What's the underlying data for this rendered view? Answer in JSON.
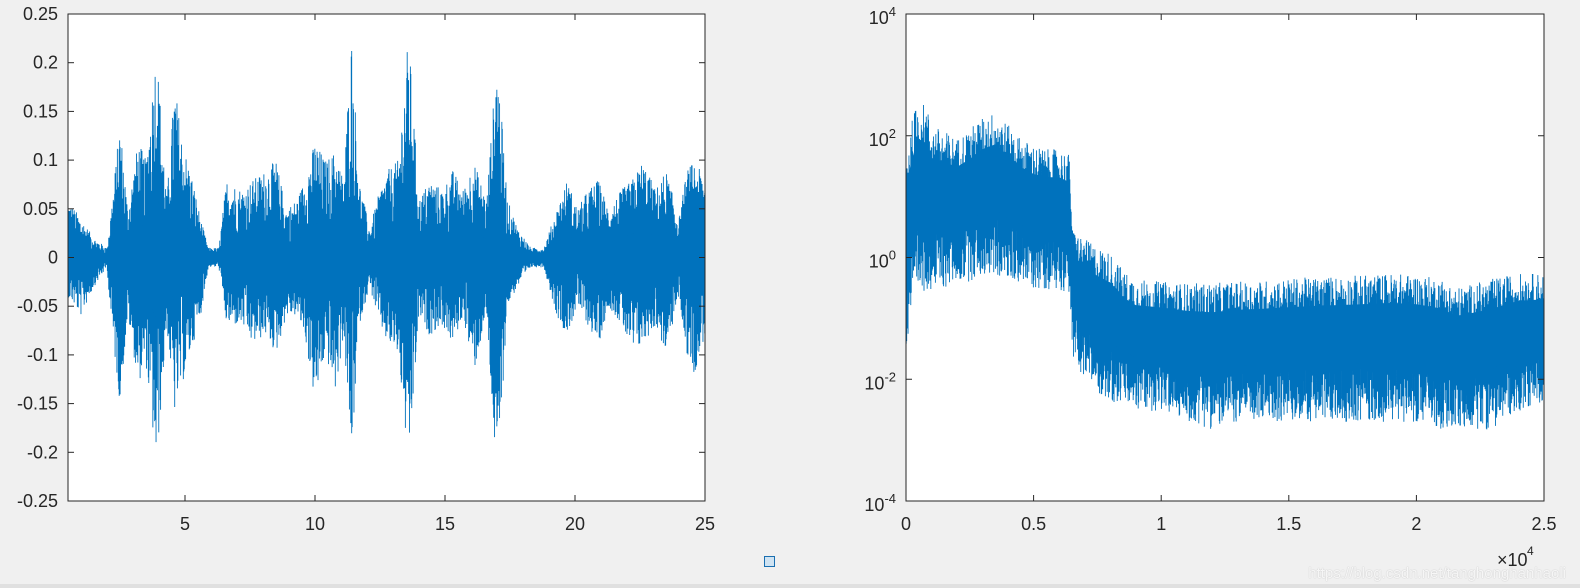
{
  "colors": {
    "series": "#0072bd",
    "axes": "#262626",
    "figure_bg": "#f0f0f0",
    "plot_bg": "#ffffff"
  },
  "footer": {
    "watermark": "https://blog.csdn.net/tanghonghanhaoli",
    "dock_icon": "square-icon"
  },
  "chart_data": [
    {
      "type": "line",
      "title": "",
      "xlabel": "",
      "ylabel": "",
      "xlim": [
        0.5,
        25
      ],
      "ylim": [
        -0.25,
        0.25
      ],
      "grid": false,
      "xticks": [
        5,
        10,
        15,
        20,
        25
      ],
      "xtick_labels": [
        "5",
        "10",
        "15",
        "20",
        "25"
      ],
      "yticks": [
        0.25,
        0.2,
        0.15,
        0.1,
        0.05,
        0,
        -0.05,
        -0.1,
        -0.15,
        -0.2,
        -0.25
      ],
      "ytick_labels": [
        "0.25",
        "0.2",
        "0.15",
        "0.1",
        "0.05",
        "0",
        "-0.05",
        "-0.1",
        "-0.15",
        "-0.2",
        "-0.25"
      ],
      "envelope": {
        "x": [
          0.5,
          1.0,
          1.5,
          2.0,
          2.2,
          2.5,
          2.8,
          3.2,
          3.5,
          3.9,
          4.3,
          4.6,
          4.9,
          5.3,
          5.6,
          5.9,
          6.3,
          6.6,
          7.2,
          7.6,
          8.1,
          8.5,
          8.9,
          9.3,
          9.6,
          10.0,
          10.4,
          10.8,
          11.1,
          11.4,
          11.7,
          12.1,
          12.5,
          12.8,
          13.2,
          13.6,
          14.0,
          14.4,
          14.9,
          15.3,
          15.7,
          16.1,
          16.6,
          17.0,
          17.4,
          17.8,
          18.3,
          18.8,
          19.3,
          19.7,
          20.1,
          20.5,
          20.9,
          21.3,
          21.8,
          22.2,
          22.6,
          23.1,
          23.5,
          24.0,
          24.3,
          24.6,
          25.0
        ],
        "upper": [
          0.06,
          0.04,
          0.02,
          0.01,
          0.06,
          0.14,
          0.05,
          0.12,
          0.1,
          0.22,
          0.06,
          0.18,
          0.12,
          0.08,
          0.04,
          0.01,
          0.01,
          0.08,
          0.07,
          0.08,
          0.09,
          0.1,
          0.05,
          0.06,
          0.08,
          0.12,
          0.1,
          0.11,
          0.08,
          0.23,
          0.08,
          0.03,
          0.07,
          0.09,
          0.1,
          0.23,
          0.06,
          0.08,
          0.07,
          0.09,
          0.07,
          0.1,
          0.06,
          0.21,
          0.06,
          0.03,
          0.01,
          0.01,
          0.05,
          0.08,
          0.05,
          0.07,
          0.08,
          0.05,
          0.07,
          0.08,
          0.1,
          0.07,
          0.09,
          0.04,
          0.09,
          0.1,
          0.08
        ],
        "lower": [
          -0.04,
          -0.06,
          -0.03,
          -0.01,
          -0.08,
          -0.15,
          -0.06,
          -0.13,
          -0.11,
          -0.22,
          -0.07,
          -0.16,
          -0.13,
          -0.09,
          -0.06,
          -0.01,
          -0.01,
          -0.07,
          -0.07,
          -0.09,
          -0.08,
          -0.1,
          -0.06,
          -0.06,
          -0.08,
          -0.15,
          -0.1,
          -0.14,
          -0.08,
          -0.21,
          -0.07,
          -0.03,
          -0.07,
          -0.09,
          -0.1,
          -0.22,
          -0.06,
          -0.08,
          -0.07,
          -0.09,
          -0.06,
          -0.12,
          -0.06,
          -0.24,
          -0.05,
          -0.03,
          -0.01,
          -0.01,
          -0.06,
          -0.08,
          -0.05,
          -0.07,
          -0.09,
          -0.05,
          -0.07,
          -0.1,
          -0.09,
          -0.07,
          -0.1,
          -0.04,
          -0.1,
          -0.12,
          -0.08
        ]
      }
    },
    {
      "type": "line",
      "title": "",
      "xlabel": "",
      "ylabel": "",
      "xlim": [
        0,
        25000
      ],
      "ylim": [
        0.0001,
        10000
      ],
      "yscale": "log",
      "grid": false,
      "xticks": [
        0,
        5000,
        10000,
        15000,
        20000,
        25000
      ],
      "xtick_labels": [
        "0",
        "0.5",
        "1",
        "1.5",
        "2",
        "2.5"
      ],
      "x_multiplier_label": "×10",
      "x_multiplier_exp": "4",
      "yticks": [
        10000,
        100,
        1,
        0.01,
        0.0001
      ],
      "ytick_bases": [
        "10",
        "10",
        "10",
        "10",
        "10"
      ],
      "ytick_exps": [
        "4",
        "2",
        "0",
        "-2",
        "-4"
      ],
      "envelope": {
        "x": [
          0,
          200,
          500,
          800,
          1000,
          1500,
          2000,
          2500,
          3000,
          3500,
          4000,
          4500,
          5000,
          5500,
          6000,
          6400,
          6500,
          7000,
          7500,
          8000,
          8500,
          9000,
          10000,
          11000,
          12000,
          13000,
          14000,
          15000,
          16000,
          17000,
          18000,
          19000,
          20000,
          21000,
          21500,
          22000,
          23000,
          24000,
          25000
        ],
        "upper": [
          60,
          150,
          400,
          300,
          150,
          120,
          90,
          130,
          200,
          250,
          150,
          90,
          70,
          60,
          60,
          50,
          3,
          2,
          1.5,
          1.2,
          0.6,
          0.45,
          0.4,
          0.38,
          0.38,
          0.4,
          0.42,
          0.45,
          0.48,
          0.5,
          0.52,
          0.55,
          0.52,
          0.45,
          0.32,
          0.35,
          0.45,
          0.55,
          0.55
        ],
        "lower": [
          0.003,
          0.1,
          0.2,
          0.3,
          0.3,
          0.3,
          0.4,
          0.4,
          0.5,
          0.5,
          0.4,
          0.4,
          0.3,
          0.3,
          0.3,
          0.25,
          0.02,
          0.01,
          0.006,
          0.004,
          0.004,
          0.003,
          0.003,
          0.002,
          0.0015,
          0.002,
          0.002,
          0.002,
          0.002,
          0.002,
          0.002,
          0.002,
          0.002,
          0.0015,
          0.0015,
          0.0015,
          0.0015,
          0.003,
          0.004
        ]
      }
    }
  ]
}
